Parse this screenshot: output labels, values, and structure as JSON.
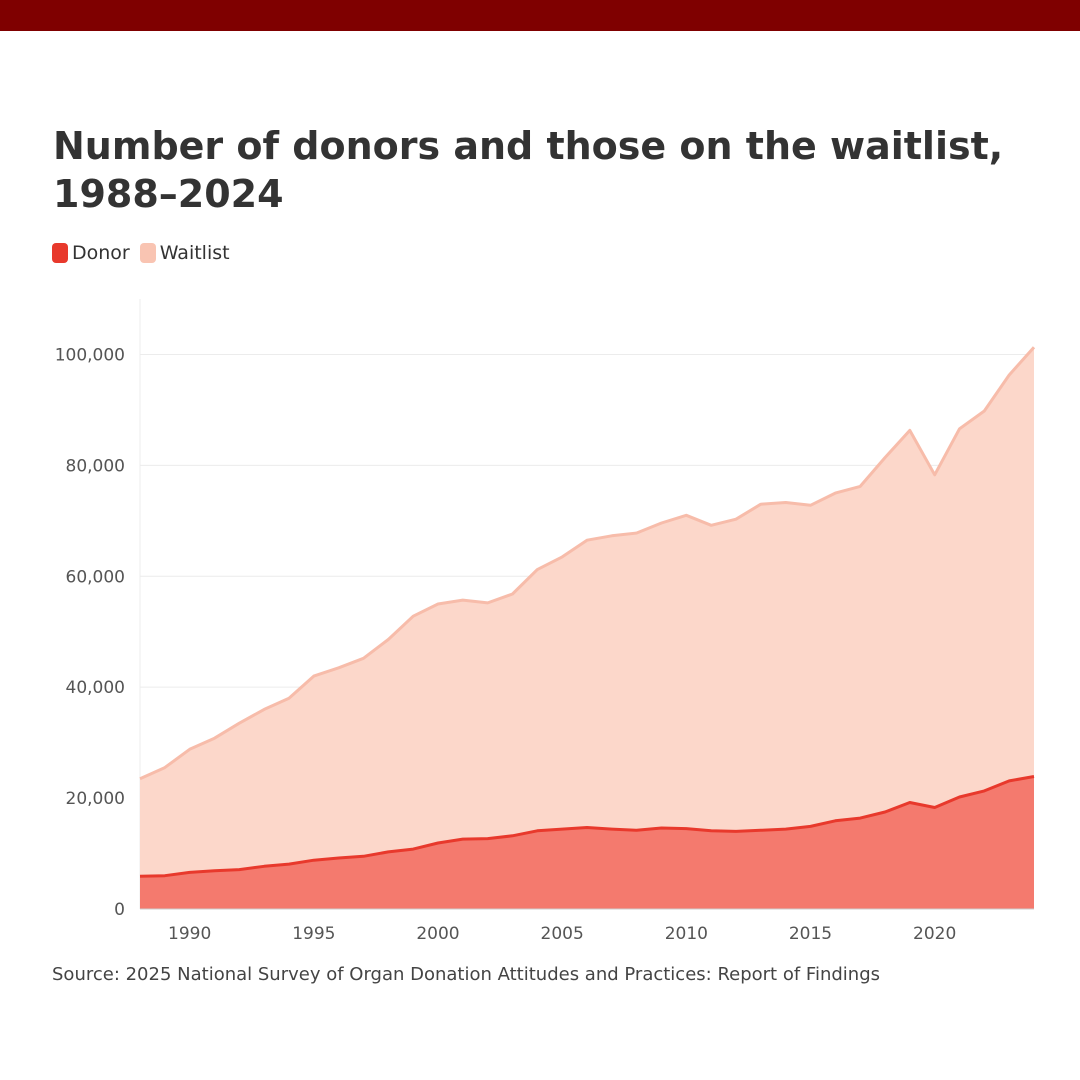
{
  "header": {
    "title": "Number of donors and those on the waitlist, 1988–2024"
  },
  "colors": {
    "top_bar": "#7f0000",
    "donor_fill": "#f47a6e",
    "donor_line": "#e8392c",
    "waitlist_fill": "#fcd7ca",
    "waitlist_line": "#f7bcaa",
    "grid": "#ececec"
  },
  "legend": {
    "items": [
      {
        "label": "Donor",
        "color": "#e8392c"
      },
      {
        "label": "Waitlist",
        "color": "#f9c4b2"
      }
    ]
  },
  "footer": {
    "source": "Source: 2025 National Survey of Organ Donation Attitudes and Practices: Report of Findings"
  },
  "chart_data": {
    "type": "area",
    "title": "Number of donors and those on the waitlist, 1988–2024",
    "xlabel": "",
    "ylabel": "",
    "xlim": [
      1988,
      2024
    ],
    "ylim": [
      0,
      110000
    ],
    "grid": true,
    "legend_position": "top-left",
    "x_ticks": [
      1990,
      1995,
      2000,
      2005,
      2010,
      2015,
      2020
    ],
    "y_ticks": [
      0,
      20000,
      40000,
      60000,
      80000,
      100000
    ],
    "y_tick_labels": [
      "0",
      "20,000",
      "40,000",
      "60,000",
      "80,000",
      "100,000"
    ],
    "x": [
      1988,
      1989,
      1990,
      1991,
      1992,
      1993,
      1994,
      1995,
      1996,
      1997,
      1998,
      1999,
      2000,
      2001,
      2002,
      2003,
      2004,
      2005,
      2006,
      2007,
      2008,
      2009,
      2010,
      2011,
      2012,
      2013,
      2014,
      2015,
      2016,
      2017,
      2018,
      2019,
      2020,
      2021,
      2022,
      2023,
      2024
    ],
    "series": [
      {
        "name": "Waitlist",
        "values": [
          23500,
          25500,
          28800,
          30800,
          33500,
          36000,
          38000,
          42000,
          43500,
          45200,
          48600,
          52800,
          55000,
          55700,
          55200,
          56800,
          61200,
          63500,
          66500,
          67300,
          67800,
          69600,
          71000,
          69200,
          70300,
          73000,
          73300,
          72800,
          75000,
          76200,
          81400,
          86300,
          78300,
          86600,
          89800,
          96300,
          101300
        ]
      },
      {
        "name": "Donor",
        "values": [
          5900,
          6000,
          6600,
          6900,
          7100,
          7700,
          8100,
          8800,
          9200,
          9500,
          10300,
          10800,
          11900,
          12600,
          12700,
          13200,
          14100,
          14400,
          14700,
          14400,
          14200,
          14600,
          14500,
          14100,
          14000,
          14200,
          14400,
          14900,
          15900,
          16400,
          17500,
          19200,
          18300,
          20200,
          21300,
          23100,
          23900
        ]
      }
    ]
  }
}
